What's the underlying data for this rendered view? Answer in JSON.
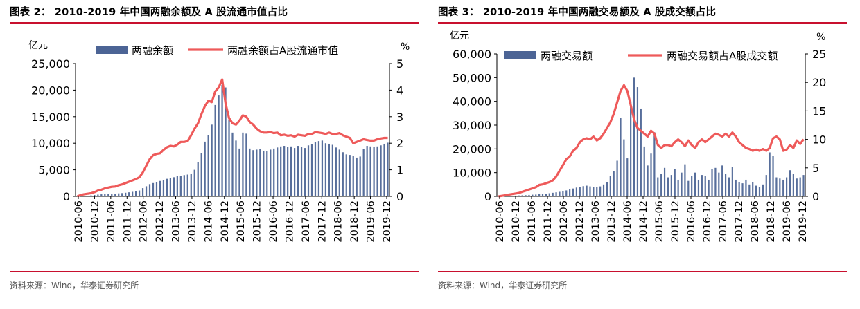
{
  "charts": [
    {
      "title": "图表 2：   2010-2019 年中国两融余额及 A 股流通市值占比",
      "source": "资料来源：Wind，华泰证券研究所",
      "left_unit": "亿元",
      "right_unit": "%",
      "colors": {
        "bar": "#1f3d7a",
        "line": "#ee5a5a"
      }
    },
    {
      "title": "图表 3：   2010-2019 年中国两融交易额及 A 股成交额占比",
      "source": "资料来源：Wind，华泰证券研究所",
      "left_unit": "亿元",
      "right_unit": "%",
      "colors": {
        "bar": "#1f3d7a",
        "line": "#ee5a5a"
      }
    }
  ],
  "chart_data": [
    {
      "type": "bar+line",
      "x_tick_labels": [
        "2010-06",
        "2010-12",
        "2011-06",
        "2011-12",
        "2012-06",
        "2012-12",
        "2013-06",
        "2013-12",
        "2014-06",
        "2014-12",
        "2015-06",
        "2015-12",
        "2016-06",
        "2016-12",
        "2017-06",
        "2017-12",
        "2018-06",
        "2018-12",
        "2019-06",
        "2019-12"
      ],
      "y_left": {
        "label": "亿元",
        "ticks": [
          "0",
          "5,000",
          "10,000",
          "15,000",
          "20,000",
          "25,000"
        ],
        "lim": [
          0,
          25000
        ]
      },
      "y_right": {
        "label": "%",
        "ticks": [
          "0",
          "1",
          "2",
          "3",
          "4",
          "5"
        ],
        "lim": [
          0,
          5
        ]
      },
      "legend": [
        "两融余额",
        "两融余额占A股流通市值"
      ],
      "series": [
        {
          "name": "两融余额",
          "kind": "bar",
          "axis": "left",
          "values": [
            0,
            40,
            90,
            130,
            180,
            260,
            330,
            380,
            400,
            430,
            490,
            500,
            560,
            610,
            680,
            760,
            850,
            960,
            1100,
            1550,
            1900,
            2300,
            2500,
            2700,
            2900,
            3100,
            3300,
            3500,
            3600,
            3800,
            3900,
            4000,
            4100,
            4300,
            5000,
            6500,
            8200,
            10300,
            11500,
            13500,
            17200,
            19000,
            21000,
            20500,
            14500,
            12000,
            10500,
            9000,
            12000,
            11800,
            9000,
            8700,
            8800,
            8900,
            8600,
            8500,
            8800,
            9000,
            9200,
            9400,
            9500,
            9300,
            9400,
            9100,
            9500,
            9300,
            9100,
            9600,
            9800,
            10200,
            10400,
            10500,
            10000,
            9900,
            9700,
            9200,
            8800,
            8300,
            7900,
            7800,
            7600,
            7300,
            7500,
            8900,
            9500,
            9400,
            9300,
            9400,
            9600,
            9900,
            10100
          ]
        },
        {
          "name": "两融余额占A股流通市值",
          "kind": "line",
          "axis": "right",
          "values": [
            0,
            0.05,
            0.08,
            0.1,
            0.12,
            0.16,
            0.22,
            0.25,
            0.3,
            0.33,
            0.36,
            0.37,
            0.42,
            0.45,
            0.5,
            0.55,
            0.6,
            0.65,
            0.72,
            0.9,
            1.15,
            1.4,
            1.55,
            1.6,
            1.62,
            1.75,
            1.85,
            1.9,
            1.88,
            1.95,
            2.05,
            2.05,
            2.08,
            2.3,
            2.55,
            2.75,
            3.1,
            3.4,
            3.6,
            3.55,
            3.95,
            4.1,
            4.4,
            3.5,
            2.95,
            2.75,
            2.7,
            2.85,
            3.05,
            3.0,
            2.8,
            2.7,
            2.55,
            2.45,
            2.4,
            2.4,
            2.42,
            2.38,
            2.4,
            2.3,
            2.32,
            2.28,
            2.3,
            2.25,
            2.32,
            2.3,
            2.28,
            2.35,
            2.35,
            2.42,
            2.4,
            2.38,
            2.35,
            2.4,
            2.35,
            2.35,
            2.38,
            2.3,
            2.25,
            2.2,
            2.0,
            2.05,
            2.1,
            2.15,
            2.12,
            2.1,
            2.1,
            2.15,
            2.18,
            2.2,
            2.2
          ]
        }
      ]
    },
    {
      "type": "bar+line",
      "x_tick_labels": [
        "2010-06",
        "2010-12",
        "2011-06",
        "2011-12",
        "2012-06",
        "2012-12",
        "2013-06",
        "2013-12",
        "2014-06",
        "2014-12",
        "2015-06",
        "2015-12",
        "2016-06",
        "2016-12",
        "2017-06",
        "2017-12",
        "2018-06",
        "2018-12",
        "2019-06",
        "2019-12"
      ],
      "y_left": {
        "label": "亿元",
        "ticks": [
          "0",
          "10,000",
          "20,000",
          "30,000",
          "40,000",
          "50,000",
          "60,000"
        ],
        "lim": [
          0,
          60000
        ]
      },
      "y_right": {
        "label": "%",
        "ticks": [
          "0",
          "5",
          "10",
          "15",
          "20",
          "25"
        ],
        "lim": [
          0,
          25
        ]
      },
      "legend": [
        "两融交易额",
        "两融交易额占A股成交额"
      ],
      "series": [
        {
          "name": "两融交易额",
          "kind": "bar",
          "axis": "left",
          "values": [
            0,
            60,
            100,
            160,
            220,
            300,
            380,
            450,
            500,
            600,
            700,
            750,
            900,
            1000,
            1100,
            1300,
            1500,
            1700,
            1900,
            2200,
            2500,
            2900,
            3300,
            3700,
            4000,
            4300,
            4500,
            4200,
            4000,
            3800,
            4200,
            5000,
            6000,
            8500,
            10500,
            15000,
            33000,
            24000,
            16000,
            40000,
            50000,
            46000,
            37000,
            21000,
            13000,
            18000,
            27000,
            8000,
            9500,
            12000,
            8000,
            9000,
            11500,
            7000,
            10000,
            13500,
            6500,
            8500,
            10000,
            7000,
            9000,
            8500,
            7000,
            11500,
            12000,
            10000,
            13000,
            9500,
            8000,
            12500,
            7000,
            6000,
            5500,
            7000,
            5000,
            6000,
            4500,
            4000,
            5000,
            9000,
            18500,
            17000,
            8000,
            7500,
            7000,
            8000,
            11000,
            9500,
            7500,
            8000,
            9000
          ]
        },
        {
          "name": "两融交易额占A股成交额",
          "kind": "line",
          "axis": "right",
          "values": [
            0,
            0.1,
            0.2,
            0.3,
            0.4,
            0.5,
            0.6,
            0.8,
            1.0,
            1.2,
            1.4,
            1.6,
            2.0,
            2.1,
            2.3,
            2.5,
            2.8,
            3.5,
            4.5,
            5.5,
            6.5,
            7.0,
            8.0,
            8.5,
            9.5,
            10.0,
            10.2,
            10.0,
            10.5,
            9.8,
            10.2,
            11.0,
            12.0,
            13.0,
            14.5,
            16.5,
            18.5,
            19.5,
            18.5,
            16.0,
            13.5,
            12.0,
            11.5,
            11.0,
            10.5,
            11.5,
            11.0,
            9.0,
            8.5,
            9.0,
            9.0,
            8.8,
            9.5,
            10.0,
            9.5,
            8.8,
            9.8,
            9.0,
            8.5,
            9.5,
            10.0,
            9.5,
            10.0,
            10.5,
            11.0,
            10.8,
            10.5,
            11.0,
            10.5,
            11.2,
            10.5,
            9.5,
            9.0,
            8.5,
            8.3,
            8.0,
            8.2,
            8.0,
            8.3,
            8.0,
            8.5,
            10.2,
            10.5,
            10.0,
            8.0,
            8.2,
            9.0,
            8.5,
            9.8,
            9.2,
            10.0
          ]
        }
      ]
    }
  ]
}
